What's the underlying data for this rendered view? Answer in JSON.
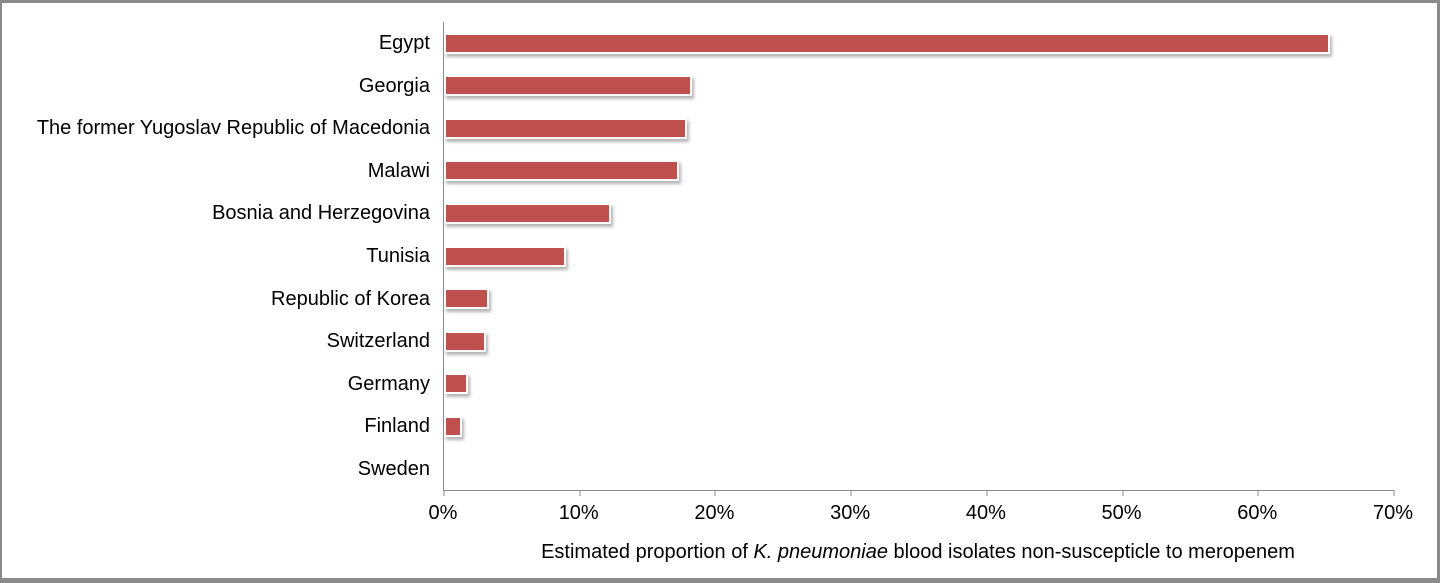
{
  "chart_data": {
    "type": "bar",
    "orientation": "horizontal",
    "title": "",
    "categories": [
      "Egypt",
      "Georgia",
      "The former Yugoslav Republic of Macedonia",
      "Malawi",
      "Bosnia and Herzegovina",
      "Tunisia",
      "Republic of Korea",
      "Switzerland",
      "Germany",
      "Finland",
      "Sweden"
    ],
    "values": [
      65,
      18,
      17.6,
      17,
      12,
      8.7,
      3,
      2.8,
      1.5,
      1,
      0
    ],
    "unit": "%",
    "xlabel": "Estimated proportion of K. pneumoniae blood isolates non-suscepticle to meropenem",
    "xlabel_parts": {
      "prefix": "Estimated proportion of ",
      "italic": "K. pneumoniae",
      "suffix": " blood isolates non-suscepticle to meropenem"
    },
    "xlim": [
      0,
      70
    ],
    "x_ticks": [
      "0%",
      "10%",
      "20%",
      "30%",
      "40%",
      "50%",
      "60%",
      "70%"
    ],
    "grid": false,
    "legend": false,
    "bar_color": "#C0504D",
    "axis_color": "#8B8B8B",
    "frame_color": "#8A8A8A",
    "text_color": "#000000"
  }
}
